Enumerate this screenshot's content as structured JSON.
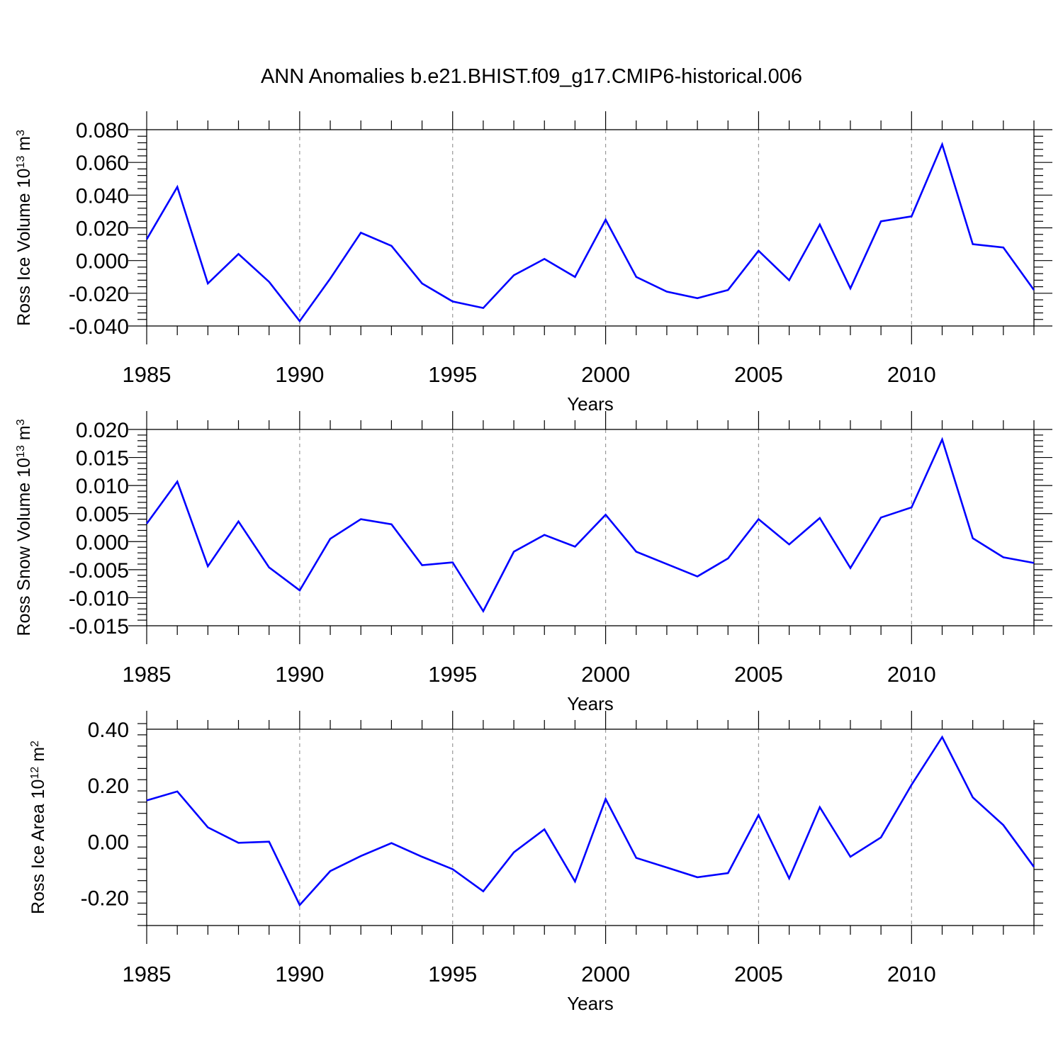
{
  "title": "ANN Anomalies b.e21.BHIST.f09_g17.CMIP6-historical.006",
  "line_color": "#0000ff",
  "chart_data": [
    {
      "type": "line",
      "xlabel": "Years",
      "ylabel": "Ross Ice Volume 10",
      "ylabel_exp": "13",
      "ylabel_unit": " m",
      "ylabel_unit_exp": "3",
      "xlim": [
        1985,
        2014
      ],
      "ylim": [
        -0.04,
        0.08
      ],
      "yticks": [
        -0.04,
        -0.02,
        0.0,
        0.02,
        0.04,
        0.06,
        0.08
      ],
      "ytick_labels": [
        "-0.040",
        "-0.020",
        "0.000",
        "0.020",
        "0.040",
        "0.060",
        "0.080"
      ],
      "xticks": [
        1985,
        1990,
        1995,
        2000,
        2005,
        2010
      ],
      "xtick_labels": [
        "1985",
        "1990",
        "1995",
        "2000",
        "2005",
        "2010"
      ],
      "grid": "dashed vertical at major x ticks",
      "x": [
        1985,
        1986,
        1987,
        1988,
        1989,
        1990,
        1991,
        1992,
        1993,
        1994,
        1995,
        1996,
        1997,
        1998,
        1999,
        2000,
        2001,
        2002,
        2003,
        2004,
        2005,
        2006,
        2007,
        2008,
        2009,
        2010,
        2011,
        2012,
        2013,
        2014
      ],
      "series": [
        {
          "values": [
            0.013,
            0.045,
            -0.014,
            0.004,
            -0.013,
            -0.037,
            -0.011,
            0.017,
            0.009,
            -0.014,
            -0.025,
            -0.029,
            -0.009,
            0.001,
            -0.01,
            0.025,
            -0.01,
            -0.019,
            -0.023,
            -0.018,
            0.006,
            -0.012,
            0.022,
            -0.017,
            0.024,
            0.027,
            0.071,
            0.01,
            0.008,
            -0.018
          ]
        }
      ]
    },
    {
      "type": "line",
      "xlabel": "Years",
      "ylabel": "Ross Snow Volume 10",
      "ylabel_exp": "13",
      "ylabel_unit": " m",
      "ylabel_unit_exp": "3",
      "xlim": [
        1985,
        2014
      ],
      "ylim": [
        -0.015,
        0.02
      ],
      "yticks": [
        -0.015,
        -0.01,
        -0.005,
        0.0,
        0.005,
        0.01,
        0.015,
        0.02
      ],
      "ytick_labels": [
        "-0.015",
        "-0.010",
        "-0.005",
        "0.000",
        "0.005",
        "0.010",
        "0.015",
        "0.020"
      ],
      "xticks": [
        1985,
        1990,
        1995,
        2000,
        2005,
        2010
      ],
      "xtick_labels": [
        "1985",
        "1990",
        "1995",
        "2000",
        "2005",
        "2010"
      ],
      "grid": "dashed vertical at major x ticks",
      "x": [
        1985,
        1986,
        1987,
        1988,
        1989,
        1990,
        1991,
        1992,
        1993,
        1994,
        1995,
        1996,
        1997,
        1998,
        1999,
        2000,
        2001,
        2002,
        2003,
        2004,
        2005,
        2006,
        2007,
        2008,
        2009,
        2010,
        2011,
        2012,
        2013,
        2014
      ],
      "series": [
        {
          "values": [
            0.0032,
            0.0107,
            -0.0044,
            0.0036,
            -0.0046,
            -0.0087,
            0.0005,
            0.004,
            0.0031,
            -0.0042,
            -0.0037,
            -0.0124,
            -0.0018,
            0.0012,
            -0.0009,
            0.0048,
            -0.0018,
            -0.004,
            -0.0062,
            -0.003,
            0.004,
            -0.0005,
            0.0042,
            -0.0047,
            0.0043,
            0.0061,
            0.0182,
            0.0006,
            -0.0028,
            -0.0038
          ]
        }
      ]
    },
    {
      "type": "line",
      "xlabel": "Years",
      "ylabel": "Ross Ice Area 10",
      "ylabel_exp": "12",
      "ylabel_unit": " m",
      "ylabel_unit_exp": "2",
      "xlim": [
        1985,
        2014
      ],
      "ylim": [
        -0.3,
        0.4
      ],
      "yticks": [
        -0.2,
        0.0,
        0.2,
        0.4
      ],
      "ytick_labels": [
        "-0.20",
        "0.00",
        "0.20",
        "0.40"
      ],
      "xticks": [
        1985,
        1990,
        1995,
        2000,
        2005,
        2010
      ],
      "xtick_labels": [
        "1985",
        "1990",
        "1995",
        "2000",
        "2005",
        "2010"
      ],
      "grid": "dashed vertical at major x ticks",
      "x": [
        1985,
        1986,
        1987,
        1988,
        1989,
        1990,
        1991,
        1992,
        1993,
        1994,
        1995,
        1996,
        1997,
        1998,
        1999,
        2000,
        2001,
        2002,
        2003,
        2004,
        2005,
        2006,
        2007,
        2008,
        2009,
        2010,
        2011,
        2012,
        2013,
        2014
      ],
      "series": [
        {
          "values": [
            0.146,
            0.178,
            0.05,
            -0.005,
            -0.001,
            -0.227,
            -0.106,
            -0.052,
            -0.006,
            -0.055,
            -0.099,
            -0.178,
            -0.039,
            0.043,
            -0.143,
            0.151,
            -0.059,
            -0.093,
            -0.128,
            -0.113,
            0.094,
            -0.132,
            0.122,
            -0.055,
            0.014,
            0.202,
            0.372,
            0.157,
            0.058,
            -0.091
          ]
        }
      ]
    }
  ]
}
